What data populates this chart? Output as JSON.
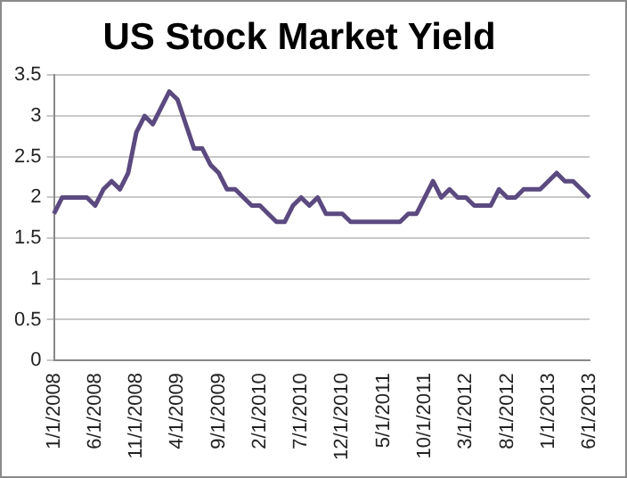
{
  "chart_data": {
    "type": "line",
    "title": "US Stock Market Yield",
    "categories": [
      "1/1/2008",
      null,
      null,
      null,
      null,
      "6/1/2008",
      null,
      null,
      null,
      null,
      "11/1/2008",
      null,
      null,
      null,
      null,
      "4/1/2009",
      null,
      null,
      null,
      null,
      "9/1/2009",
      null,
      null,
      null,
      null,
      "2/1/2010",
      null,
      null,
      null,
      null,
      "7/1/2010",
      null,
      null,
      null,
      null,
      "12/1/2010",
      null,
      null,
      null,
      null,
      "5/1/2011",
      null,
      null,
      null,
      null,
      "10/1/2011",
      null,
      null,
      null,
      null,
      "3/1/2012",
      null,
      null,
      null,
      null,
      "8/1/2012",
      null,
      null,
      null,
      null,
      "1/1/2013",
      null,
      null,
      null,
      null,
      "6/1/2013"
    ],
    "series": [
      {
        "color": "#5b4a80",
        "values": [
          1.8,
          2.0,
          2.0,
          2.0,
          2.0,
          1.9,
          2.1,
          2.2,
          2.1,
          2.3,
          2.8,
          3.0,
          2.9,
          3.1,
          3.3,
          3.2,
          2.9,
          2.6,
          2.6,
          2.4,
          2.3,
          2.1,
          2.1,
          2.0,
          1.9,
          1.9,
          1.8,
          1.7,
          1.7,
          1.9,
          2.0,
          1.9,
          2.0,
          1.8,
          1.8,
          1.8,
          1.7,
          1.7,
          1.7,
          1.7,
          1.7,
          1.7,
          1.7,
          1.8,
          1.8,
          2.0,
          2.2,
          2.0,
          2.1,
          2.0,
          2.0,
          1.9,
          1.9,
          1.9,
          2.1,
          2.0,
          2.0,
          2.1,
          2.1,
          2.1,
          2.2,
          2.3,
          2.2,
          2.2,
          2.1,
          2.0
        ]
      }
    ],
    "ylim": [
      0,
      3.5
    ],
    "yticks": [
      0,
      0.5,
      1,
      1.5,
      2,
      2.5,
      3,
      3.5
    ],
    "grid": "y",
    "legend": false,
    "marker": "none",
    "line_style": "solid"
  }
}
